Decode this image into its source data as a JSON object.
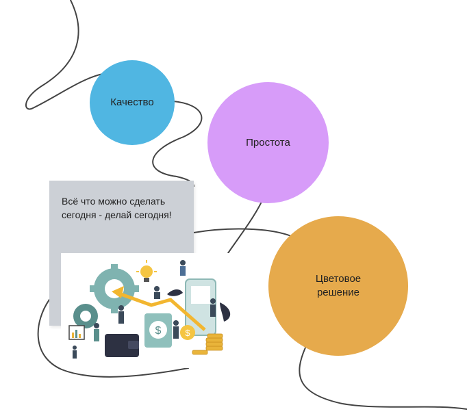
{
  "nodes": {
    "quality": {
      "label": "Качество",
      "color": "#50b6e2"
    },
    "simplicity": {
      "label": "Простота",
      "color": "#d79cf9"
    },
    "color_solution": {
      "label": "Цветовое\nрешение",
      "color": "#e6aa4c"
    }
  },
  "note": {
    "text": "Всё что можно сделать сегодня - делай сегодня!",
    "background": "#ccd0d6"
  },
  "illustration": {
    "icons": [
      "gear-icon",
      "lightbulb-icon",
      "dollar-coin-icon",
      "wallet-icon",
      "growth-arrow-icon",
      "coin-stack-icon",
      "phone-icon",
      "chart-board-icon"
    ]
  },
  "connector": {
    "color": "#444444"
  }
}
